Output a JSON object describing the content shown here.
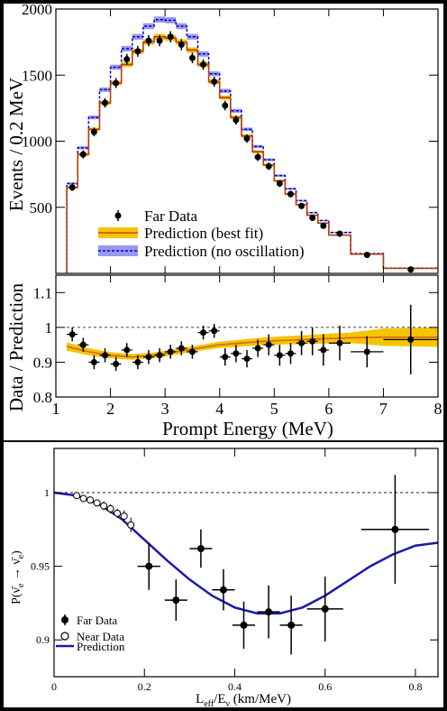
{
  "chart_data": [
    {
      "type": "line",
      "panel": "spectrum",
      "ylabel": "Events / 0.2 MeV",
      "xlim": [
        1,
        8
      ],
      "ylim": [
        0,
        2000
      ],
      "yticks": [
        500,
        1000,
        1500,
        2000
      ],
      "grid": false,
      "legend_position": "bottom-left",
      "legend": {
        "data": "Far Data",
        "best_fit": "Prediction (best fit)",
        "no_osc": "Prediction (no oscillation)"
      },
      "bin_edges": [
        1.2,
        1.4,
        1.6,
        1.8,
        2.0,
        2.2,
        2.4,
        2.6,
        2.8,
        3.0,
        3.2,
        3.4,
        3.6,
        3.8,
        4.0,
        4.2,
        4.4,
        4.6,
        4.8,
        5.0,
        5.2,
        5.4,
        5.6,
        5.8,
        6.0,
        6.4,
        7.0,
        8.0
      ],
      "series": [
        {
          "name": "Prediction (no oscillation)",
          "values": [
            680,
            950,
            1180,
            1390,
            1560,
            1700,
            1790,
            1870,
            1920,
            1915,
            1870,
            1790,
            1660,
            1510,
            1380,
            1230,
            1090,
            960,
            860,
            740,
            640,
            550,
            460,
            400,
            310,
            150,
            40
          ]
        },
        {
          "name": "Prediction (best fit)",
          "values": [
            650,
            900,
            1090,
            1290,
            1440,
            1580,
            1680,
            1750,
            1790,
            1780,
            1750,
            1690,
            1580,
            1450,
            1330,
            1180,
            1040,
            920,
            820,
            700,
            600,
            520,
            440,
            380,
            290,
            145,
            38
          ]
        },
        {
          "name": "Far Data",
          "x": [
            1.3,
            1.5,
            1.7,
            1.9,
            2.1,
            2.3,
            2.5,
            2.7,
            2.9,
            3.1,
            3.3,
            3.5,
            3.7,
            3.9,
            4.1,
            4.3,
            4.5,
            4.7,
            4.9,
            5.1,
            5.3,
            5.5,
            5.7,
            5.9,
            6.2,
            6.7,
            7.5
          ],
          "y": [
            650,
            900,
            1070,
            1290,
            1440,
            1620,
            1680,
            1760,
            1760,
            1790,
            1730,
            1630,
            1580,
            1450,
            1270,
            1160,
            1020,
            880,
            810,
            680,
            600,
            510,
            420,
            360,
            300,
            140,
            30
          ],
          "yerr": [
            25,
            30,
            33,
            36,
            38,
            40,
            41,
            42,
            42,
            42,
            42,
            40,
            40,
            38,
            36,
            34,
            32,
            30,
            28,
            26,
            25,
            23,
            21,
            19,
            17,
            12,
            6
          ]
        }
      ]
    },
    {
      "type": "scatter",
      "panel": "ratio",
      "xlabel": "Prompt Energy (MeV)",
      "ylabel": "Data / Prediction",
      "xlim": [
        1,
        8
      ],
      "ylim": [
        0.8,
        1.15
      ],
      "xticks": [
        1,
        2,
        3,
        4,
        5,
        6,
        7,
        8
      ],
      "yticks": [
        0.8,
        0.9,
        1,
        1.1
      ],
      "reference_line": 1,
      "grid": false,
      "band": {
        "x": [
          1.2,
          1.6,
          2.0,
          2.4,
          2.8,
          3.2,
          3.6,
          4.0,
          4.4,
          4.8,
          5.2,
          5.6,
          6.0,
          6.4,
          7.0,
          8.0
        ],
        "y": [
          0.945,
          0.93,
          0.92,
          0.915,
          0.92,
          0.93,
          0.94,
          0.95,
          0.955,
          0.96,
          0.963,
          0.965,
          0.968,
          0.97,
          0.972,
          0.972
        ],
        "err": [
          0.012,
          0.01,
          0.009,
          0.008,
          0.008,
          0.008,
          0.008,
          0.009,
          0.01,
          0.011,
          0.012,
          0.013,
          0.014,
          0.015,
          0.025,
          0.028
        ]
      },
      "series": [
        {
          "name": "Far Data",
          "x": [
            1.3,
            1.5,
            1.7,
            1.9,
            2.1,
            2.3,
            2.5,
            2.7,
            2.9,
            3.1,
            3.3,
            3.5,
            3.7,
            3.9,
            4.1,
            4.3,
            4.5,
            4.7,
            4.9,
            5.1,
            5.3,
            5.5,
            5.7,
            5.9,
            6.2,
            6.7,
            7.5
          ],
          "y": [
            0.98,
            0.95,
            0.9,
            0.92,
            0.895,
            0.935,
            0.9,
            0.915,
            0.92,
            0.93,
            0.94,
            0.93,
            0.985,
            0.99,
            0.915,
            0.925,
            0.91,
            0.94,
            0.95,
            0.92,
            0.925,
            0.955,
            0.96,
            0.935,
            0.955,
            0.93,
            0.965
          ],
          "yerr": [
            0.02,
            0.02,
            0.02,
            0.02,
            0.02,
            0.02,
            0.02,
            0.02,
            0.02,
            0.02,
            0.02,
            0.02,
            0.02,
            0.02,
            0.025,
            0.025,
            0.025,
            0.025,
            0.03,
            0.03,
            0.03,
            0.035,
            0.04,
            0.045,
            0.05,
            0.045,
            0.1
          ],
          "xerr": [
            0.1,
            0.1,
            0.1,
            0.1,
            0.1,
            0.1,
            0.1,
            0.1,
            0.1,
            0.1,
            0.1,
            0.1,
            0.1,
            0.1,
            0.1,
            0.1,
            0.1,
            0.1,
            0.1,
            0.1,
            0.1,
            0.1,
            0.1,
            0.1,
            0.2,
            0.3,
            0.5
          ]
        }
      ]
    },
    {
      "type": "scatter",
      "panel": "survival",
      "xlabel_main": "L",
      "xlabel_sub1": "eff",
      "xlabel_mid": "/E",
      "xlabel_sub2": "ν",
      "xlabel_tail": " (km/MeV)",
      "ylabel": "P(ν̄e → ν̄e)",
      "xlim": [
        0,
        0.85
      ],
      "ylim": [
        0.875,
        1.03
      ],
      "xticks": [
        0,
        0.2,
        0.4,
        0.6,
        0.8
      ],
      "yticks": [
        0.9,
        0.95,
        1
      ],
      "reference_line": 1,
      "grid": false,
      "legend_position": "bottom-left",
      "legend": {
        "far": "Far Data",
        "near": "Near Data",
        "prediction": "Prediction"
      },
      "series": [
        {
          "name": "Far Data",
          "x": [
            0.21,
            0.27,
            0.325,
            0.375,
            0.42,
            0.475,
            0.525,
            0.6,
            0.755
          ],
          "y": [
            0.95,
            0.927,
            0.962,
            0.934,
            0.91,
            0.919,
            0.91,
            0.921,
            0.975
          ],
          "yerr": [
            0.016,
            0.014,
            0.013,
            0.014,
            0.016,
            0.018,
            0.02,
            0.022,
            0.037
          ],
          "xerr": [
            0.025,
            0.025,
            0.025,
            0.025,
            0.025,
            0.025,
            0.025,
            0.04,
            0.075
          ]
        },
        {
          "name": "Near Data",
          "x": [
            0.05,
            0.065,
            0.08,
            0.095,
            0.11,
            0.125,
            0.14,
            0.155,
            0.17
          ],
          "y": [
            0.998,
            0.996,
            0.995,
            0.993,
            0.991,
            0.989,
            0.986,
            0.984,
            0.978
          ],
          "yerr": [
            0.002,
            0.002,
            0.002,
            0.002,
            0.003,
            0.003,
            0.003,
            0.004,
            0.005
          ]
        },
        {
          "name": "Prediction",
          "x": [
            0,
            0.05,
            0.1,
            0.15,
            0.2,
            0.25,
            0.3,
            0.35,
            0.4,
            0.45,
            0.5,
            0.55,
            0.6,
            0.65,
            0.7,
            0.75,
            0.8,
            0.85
          ],
          "y": [
            1,
            0.998,
            0.992,
            0.982,
            0.968,
            0.954,
            0.941,
            0.93,
            0.922,
            0.918,
            0.918,
            0.922,
            0.93,
            0.94,
            0.95,
            0.958,
            0.964,
            0.966
          ]
        }
      ]
    }
  ]
}
